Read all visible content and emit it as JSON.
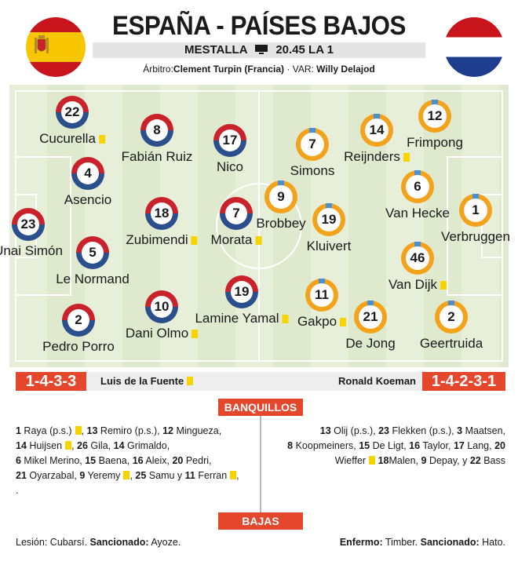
{
  "header": {
    "title": "ESPAÑA - PAÍSES BAJOS",
    "venue": "MESTALLA",
    "tv_icon": "tv-icon",
    "time_channel": "20.45 LA 1",
    "referee_label": "Árbitro:",
    "referee": "Clement Turpin (Francia)",
    "var_label": " · VAR: ",
    "var": "Willy Delajod"
  },
  "colors": {
    "spain_red": "#c9222b",
    "spain_blue": "#2b4e8c",
    "netherlands_orange": "#f3a21b",
    "accent": "#e4472c",
    "yellow_card": "#f5d400"
  },
  "spain": {
    "formation": "1-4-3-3",
    "coach": "Luis de la Fuente",
    "players": [
      {
        "number": "22",
        "name": "Cucurella",
        "card": true
      },
      {
        "number": "8",
        "name": "Fabián Ruiz",
        "card": false
      },
      {
        "number": "17",
        "name": "Nico",
        "card": false
      },
      {
        "number": "4",
        "name": "Asencio",
        "card": false
      },
      {
        "number": "23",
        "name": "Unai Simón",
        "card": false
      },
      {
        "number": "18",
        "name": "Zubimendi",
        "card": true
      },
      {
        "number": "7",
        "name": "Morata",
        "card": true
      },
      {
        "number": "5",
        "name": "Le Normand",
        "card": false
      },
      {
        "number": "2",
        "name": "Pedro Porro",
        "card": false
      },
      {
        "number": "10",
        "name": "Dani Olmo",
        "card": true
      },
      {
        "number": "19",
        "name": "Lamine Yamal",
        "card": true
      }
    ]
  },
  "netherlands": {
    "formation": "1-4-2-3-1",
    "coach": "Ronald Koeman",
    "players": [
      {
        "number": "7",
        "name": "Simons",
        "card": false
      },
      {
        "number": "14",
        "name": "Reijnders",
        "card": true
      },
      {
        "number": "12",
        "name": "Frimpong",
        "card": false
      },
      {
        "number": "9",
        "name": "Brobbey",
        "card": false
      },
      {
        "number": "6",
        "name": "Van Hecke",
        "card": false
      },
      {
        "number": "1",
        "name": "Verbruggen",
        "card": false
      },
      {
        "number": "19",
        "name": "Kluivert",
        "card": false
      },
      {
        "number": "46",
        "name": "Van Dijk",
        "card": true
      },
      {
        "number": "11",
        "name": "Gakpo",
        "card": true
      },
      {
        "number": "21",
        "name": "De Jong",
        "card": false
      },
      {
        "number": "2",
        "name": "Geertruida",
        "card": false
      }
    ]
  },
  "bench": {
    "label": "BANQUILLOS",
    "spain": [
      [
        {
          "n": "1",
          "t": " Raya (p.s.)",
          "c": true
        },
        {
          "n": "13",
          "t": " Remiro (p.s.),",
          "c": false
        },
        {
          "n": "12",
          "t": " Mingueza,",
          "c": false
        }
      ],
      [
        {
          "n": "14",
          "t": " Huijsen",
          "c": true
        },
        {
          "n": "26",
          "t": " Gila,",
          "c": false
        },
        {
          "n": "14",
          "t": " Grimaldo,",
          "c": false
        }
      ],
      [
        {
          "n": "6",
          "t": " Mikel Merino,",
          "c": false
        },
        {
          "n": "15",
          "t": " Baena,",
          "c": false
        },
        {
          "n": "16",
          "t": " Aleix,",
          "c": false
        },
        {
          "n": "20",
          "t": " Pedri,",
          "c": false
        }
      ],
      [
        {
          "n": "21",
          "t": " Oyarzabal,",
          "c": false
        },
        {
          "n": "9",
          "t": " Yeremy",
          "c": true
        },
        {
          "n": "25",
          "t": " Samu y",
          "c": false
        },
        {
          "n": "11",
          "t": " Ferran",
          "c": true
        }
      ],
      [
        {
          "n": "",
          "t": ".",
          "c": false
        }
      ]
    ],
    "netherlands": [
      [
        {
          "n": "13",
          "t": " Olij (p.s.),",
          "c": false
        },
        {
          "n": "23",
          "t": " Flekken (p.s.),",
          "c": false
        },
        {
          "n": "3",
          "t": " Maatsen,",
          "c": false
        }
      ],
      [
        {
          "n": "8",
          "t": " Koopmeiners,",
          "c": false
        },
        {
          "n": "15",
          "t": " De Ligt,",
          "c": false
        },
        {
          "n": "16",
          "t": " Taylor,",
          "c": false
        },
        {
          "n": "17",
          "t": " Lang,",
          "c": false
        },
        {
          "n": "20",
          "t": "",
          "c": false
        }
      ],
      [
        {
          "n": "",
          "t": "Wieffer",
          "c": true
        },
        {
          "n": "18",
          "t": "Malen,",
          "c": false
        },
        {
          "n": "9",
          "t": " Depay, y",
          "c": false
        },
        {
          "n": "22",
          "t": " Bass",
          "c": false
        }
      ]
    ]
  },
  "absences": {
    "label": "BAJAS",
    "spain_injury_label": "Lesión",
    "spain_injury": ": Cubarsí. ",
    "spain_suspended_label": "Sancionado:",
    "spain_suspended": " Ayoze.",
    "nl_ill_label": "Enfermo:",
    "nl_ill": " Timber. ",
    "nl_suspended_label": "Sancionado:",
    "nl_suspended": " Hato."
  }
}
